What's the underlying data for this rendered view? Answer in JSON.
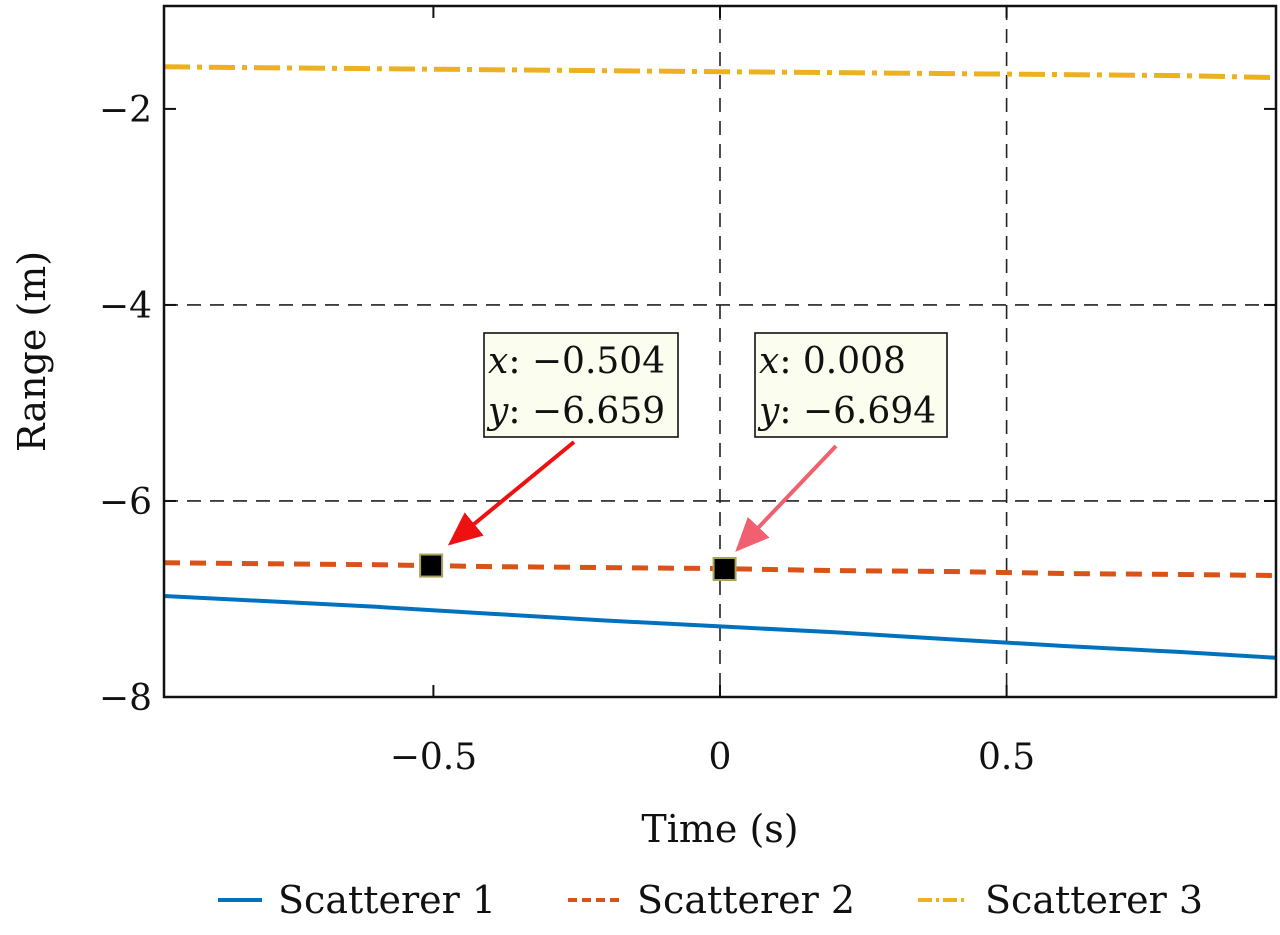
{
  "chart_data": {
    "type": "line",
    "title": "",
    "xlabel": "Time (s)",
    "ylabel": "Range (m)",
    "xlim": [
      -0.97,
      0.97
    ],
    "ylim": [
      -8,
      -0.95
    ],
    "xticks": [
      -0.5,
      0,
      0.5
    ],
    "xtick_labels": [
      "−0.5",
      "0",
      "0.5"
    ],
    "yticks": [
      -8,
      -6,
      -4,
      -2
    ],
    "ytick_labels": [
      "−8",
      "−6",
      "−4",
      "−2"
    ],
    "grid": {
      "x": [
        0,
        0.5
      ],
      "y": [
        -6,
        -4
      ],
      "style": "dashed"
    },
    "legend_position": "bottom",
    "x": [
      -0.97,
      -0.8,
      -0.6,
      -0.4,
      -0.2,
      0,
      0.2,
      0.4,
      0.6,
      0.8,
      0.97
    ],
    "series": [
      {
        "name": "Scatterer 1",
        "color": "#0072bd",
        "style": "solid",
        "values": [
          -6.97,
          -7.02,
          -7.08,
          -7.15,
          -7.22,
          -7.28,
          -7.34,
          -7.41,
          -7.48,
          -7.54,
          -7.6
        ]
      },
      {
        "name": "Scatterer 2",
        "color": "#d95319",
        "style": "dashed",
        "values": [
          -6.63,
          -6.64,
          -6.65,
          -6.67,
          -6.68,
          -6.69,
          -6.71,
          -6.72,
          -6.74,
          -6.75,
          -6.76
        ]
      },
      {
        "name": "Scatterer 3",
        "color": "#edb120",
        "style": "dashdot",
        "values": [
          -1.57,
          -1.58,
          -1.59,
          -1.6,
          -1.61,
          -1.62,
          -1.63,
          -1.64,
          -1.65,
          -1.66,
          -1.68
        ]
      }
    ],
    "datatips": [
      {
        "x": -0.504,
        "y": -6.659,
        "x_label": "x",
        "y_label": "y",
        "x_text": "−0.504",
        "y_text": "−6.659",
        "arrow_color": "#ee1111"
      },
      {
        "x": 0.008,
        "y": -6.694,
        "x_label": "x",
        "y_label": "y",
        "x_text": "0.008",
        "y_text": "−6.694",
        "arrow_color": "#f06070"
      }
    ]
  }
}
